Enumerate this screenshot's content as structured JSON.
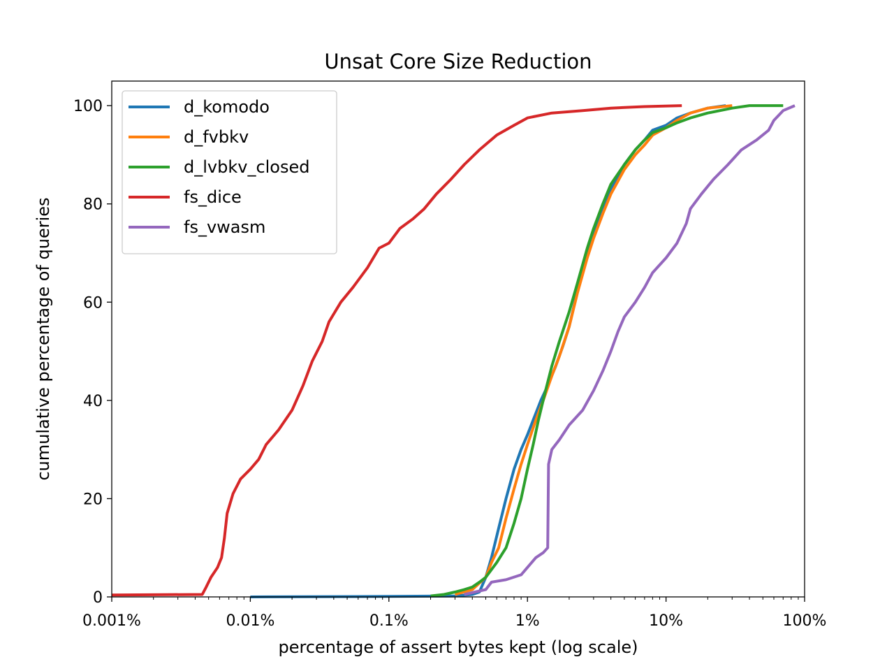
{
  "chart_data": {
    "type": "line",
    "title": "Unsat Core Size Reduction",
    "xlabel": "percentage of assert bytes kept (log scale)",
    "ylabel": "cumulative percentage of queries",
    "xscale": "log",
    "xlim": [
      0.001,
      100
    ],
    "ylim": [
      0,
      105
    ],
    "x_ticks": [
      {
        "value": 0.001,
        "label": "0.001%"
      },
      {
        "value": 0.01,
        "label": "0.01%"
      },
      {
        "value": 0.1,
        "label": "0.1%"
      },
      {
        "value": 1,
        "label": "1%"
      },
      {
        "value": 10,
        "label": "10%"
      },
      {
        "value": 100,
        "label": "100%"
      }
    ],
    "y_ticks": [
      {
        "value": 0,
        "label": "0"
      },
      {
        "value": 20,
        "label": "20"
      },
      {
        "value": 40,
        "label": "40"
      },
      {
        "value": 60,
        "label": "60"
      },
      {
        "value": 80,
        "label": "80"
      },
      {
        "value": 100,
        "label": "100"
      }
    ],
    "grid": false,
    "legend_position": "upper-left",
    "series": [
      {
        "name": "d_komodo",
        "color": "#1f77b4",
        "points": [
          [
            0.01,
            0
          ],
          [
            0.1,
            0.1
          ],
          [
            0.3,
            0.2
          ],
          [
            0.4,
            0.5
          ],
          [
            0.45,
            1
          ],
          [
            0.5,
            4
          ],
          [
            0.55,
            8
          ],
          [
            0.62,
            14
          ],
          [
            0.7,
            20
          ],
          [
            0.8,
            26
          ],
          [
            0.9,
            30
          ],
          [
            1.0,
            33
          ],
          [
            1.1,
            36
          ],
          [
            1.25,
            40
          ],
          [
            1.4,
            43
          ],
          [
            1.6,
            47
          ],
          [
            1.8,
            51
          ],
          [
            2.0,
            55
          ],
          [
            2.2,
            60
          ],
          [
            2.5,
            67
          ],
          [
            3.0,
            74
          ],
          [
            3.5,
            79
          ],
          [
            4.0,
            83
          ],
          [
            5.0,
            88
          ],
          [
            6.0,
            91
          ],
          [
            7.0,
            93
          ],
          [
            8.0,
            95
          ],
          [
            10,
            96
          ],
          [
            12,
            97.5
          ],
          [
            15,
            98.5
          ],
          [
            20,
            99.5
          ],
          [
            27,
            100
          ]
        ]
      },
      {
        "name": "d_fvbkv",
        "color": "#ff7f0e",
        "points": [
          [
            0.3,
            0.5
          ],
          [
            0.4,
            1.5
          ],
          [
            0.5,
            4
          ],
          [
            0.55,
            7
          ],
          [
            0.62,
            10
          ],
          [
            0.7,
            16
          ],
          [
            0.8,
            22
          ],
          [
            0.9,
            27
          ],
          [
            1.0,
            31
          ],
          [
            1.15,
            36
          ],
          [
            1.3,
            40
          ],
          [
            1.5,
            45
          ],
          [
            1.7,
            49
          ],
          [
            2.0,
            55
          ],
          [
            2.3,
            62
          ],
          [
            2.7,
            69
          ],
          [
            3.0,
            73
          ],
          [
            3.5,
            78
          ],
          [
            4.0,
            82
          ],
          [
            5.0,
            87
          ],
          [
            6.0,
            90
          ],
          [
            7.0,
            92
          ],
          [
            8.0,
            94
          ],
          [
            10,
            95.5
          ],
          [
            12,
            97
          ],
          [
            15,
            98.5
          ],
          [
            20,
            99.5
          ],
          [
            30,
            100
          ]
        ]
      },
      {
        "name": "d_lvbkv_closed",
        "color": "#2ca02c",
        "points": [
          [
            0.2,
            0.2
          ],
          [
            0.25,
            0.5
          ],
          [
            0.3,
            1
          ],
          [
            0.35,
            1.5
          ],
          [
            0.4,
            2
          ],
          [
            0.45,
            3
          ],
          [
            0.5,
            4
          ],
          [
            0.6,
            7
          ],
          [
            0.7,
            10
          ],
          [
            0.8,
            15
          ],
          [
            0.9,
            20
          ],
          [
            1.0,
            26
          ],
          [
            1.1,
            31
          ],
          [
            1.2,
            36
          ],
          [
            1.35,
            42
          ],
          [
            1.5,
            47
          ],
          [
            1.7,
            52
          ],
          [
            2.0,
            58
          ],
          [
            2.3,
            64
          ],
          [
            2.7,
            71
          ],
          [
            3.0,
            75
          ],
          [
            3.5,
            80
          ],
          [
            4.0,
            84
          ],
          [
            5.0,
            88
          ],
          [
            6.0,
            91
          ],
          [
            7.0,
            93
          ],
          [
            8.0,
            94.5
          ],
          [
            10,
            95.5
          ],
          [
            12,
            96.5
          ],
          [
            15,
            97.5
          ],
          [
            20,
            98.5
          ],
          [
            30,
            99.5
          ],
          [
            40,
            100
          ],
          [
            70,
            100
          ]
        ]
      },
      {
        "name": "fs_dice",
        "color": "#d62728",
        "points": [
          [
            0.001,
            0.4
          ],
          [
            0.0045,
            0.5
          ],
          [
            0.0048,
            2
          ],
          [
            0.0052,
            4
          ],
          [
            0.0058,
            6
          ],
          [
            0.0062,
            8
          ],
          [
            0.0065,
            12
          ],
          [
            0.0068,
            17
          ],
          [
            0.0075,
            21
          ],
          [
            0.0085,
            24
          ],
          [
            0.01,
            26
          ],
          [
            0.0115,
            28
          ],
          [
            0.013,
            31
          ],
          [
            0.016,
            34
          ],
          [
            0.02,
            38
          ],
          [
            0.024,
            43
          ],
          [
            0.028,
            48
          ],
          [
            0.033,
            52
          ],
          [
            0.037,
            56
          ],
          [
            0.045,
            60
          ],
          [
            0.055,
            63
          ],
          [
            0.07,
            67
          ],
          [
            0.085,
            71
          ],
          [
            0.1,
            72
          ],
          [
            0.12,
            75
          ],
          [
            0.15,
            77
          ],
          [
            0.18,
            79
          ],
          [
            0.22,
            82
          ],
          [
            0.28,
            85
          ],
          [
            0.35,
            88
          ],
          [
            0.45,
            91
          ],
          [
            0.6,
            94
          ],
          [
            0.8,
            96
          ],
          [
            1.0,
            97.5
          ],
          [
            1.5,
            98.5
          ],
          [
            2.5,
            99
          ],
          [
            4.0,
            99.5
          ],
          [
            7.0,
            99.8
          ],
          [
            13,
            100
          ]
        ]
      },
      {
        "name": "fs_vwasm",
        "color": "#9467bd",
        "points": [
          [
            0.35,
            0.5
          ],
          [
            0.5,
            1.5
          ],
          [
            0.55,
            3
          ],
          [
            0.7,
            3.5
          ],
          [
            0.9,
            4.5
          ],
          [
            1.0,
            6
          ],
          [
            1.15,
            8
          ],
          [
            1.3,
            9
          ],
          [
            1.4,
            10
          ],
          [
            1.42,
            27
          ],
          [
            1.5,
            30
          ],
          [
            1.7,
            32
          ],
          [
            2.0,
            35
          ],
          [
            2.5,
            38
          ],
          [
            3.0,
            42
          ],
          [
            3.5,
            46
          ],
          [
            4.0,
            50
          ],
          [
            4.5,
            54
          ],
          [
            5.0,
            57
          ],
          [
            6.0,
            60
          ],
          [
            7.0,
            63
          ],
          [
            8.0,
            66
          ],
          [
            10,
            69
          ],
          [
            12,
            72
          ],
          [
            14,
            76
          ],
          [
            15,
            79
          ],
          [
            18,
            82
          ],
          [
            22,
            85
          ],
          [
            28,
            88
          ],
          [
            35,
            91
          ],
          [
            45,
            93
          ],
          [
            55,
            95
          ],
          [
            60,
            97
          ],
          [
            70,
            99
          ],
          [
            85,
            100
          ]
        ]
      }
    ]
  }
}
